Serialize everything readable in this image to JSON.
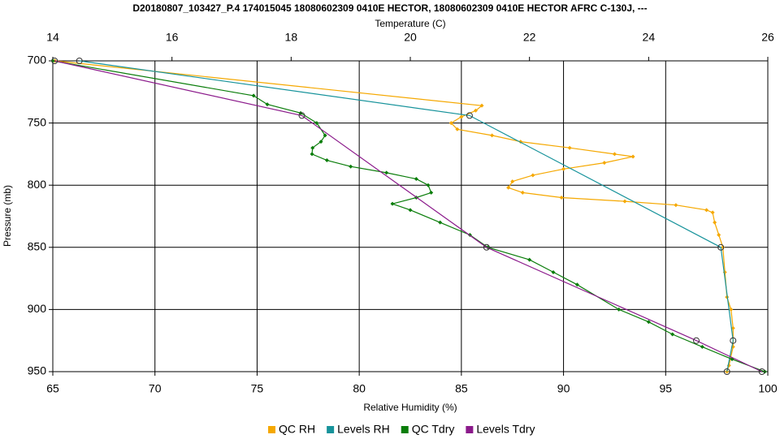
{
  "chart_data": {
    "type": "line",
    "title": "D20180807_103427_P.4 174015045 18080602309 0410E HECTOR, 18080602309 0410E HECTOR AFRC C-130J, ---",
    "x_label": "Relative Humidity (%)",
    "x2_label": "Temperature (C)",
    "y_label": "Pressure (mb)",
    "xlim": [
      65,
      100
    ],
    "xticks": [
      65,
      70,
      75,
      80,
      85,
      90,
      95,
      100
    ],
    "x2lim": [
      14,
      26
    ],
    "x2ticks": [
      14,
      16,
      18,
      20,
      22,
      24,
      26
    ],
    "ylim": [
      950,
      700
    ],
    "yticks": [
      700,
      750,
      800,
      850,
      900,
      950
    ],
    "grid": true,
    "legend": "bottom",
    "series": [
      {
        "name": "QC RH",
        "color": "#f5a800",
        "axis": "x",
        "marker": "diamond",
        "x": [
          65.1,
          86.0,
          85.7,
          85.0,
          84.5,
          84.8,
          86.5,
          87.9,
          90.3,
          92.5,
          93.4,
          92.0,
          90.0,
          88.5,
          87.5,
          87.3,
          88.0,
          89.9,
          93.0,
          95.5,
          97.0,
          97.3,
          97.4,
          97.6,
          97.8,
          97.9,
          98.0,
          98.2,
          98.3,
          98.3,
          98.1,
          98.0
        ],
        "y": [
          700,
          736,
          740,
          745,
          750,
          755,
          760,
          765,
          770,
          775,
          777,
          782,
          787,
          792,
          797,
          802,
          806,
          810,
          813,
          816,
          820,
          822,
          830,
          840,
          850,
          870,
          890,
          900,
          915,
          930,
          945,
          950
        ]
      },
      {
        "name": "Levels RH",
        "color": "#17939b",
        "axis": "x",
        "marker": "circle",
        "x": [
          66.3,
          85.4,
          97.7,
          98.3,
          98.0
        ],
        "y": [
          700,
          744,
          850,
          925,
          950
        ]
      },
      {
        "name": "QC Tdry",
        "color": "#0a7d0a",
        "axis": "x2",
        "marker": "diamond",
        "x": [
          14.0,
          17.37,
          17.6,
          18.16,
          18.43,
          18.57,
          18.5,
          18.36,
          18.35,
          18.6,
          19.0,
          19.6,
          20.1,
          20.3,
          20.35,
          20.1,
          19.7,
          20.0,
          20.5,
          21.0,
          21.3,
          22.0,
          22.4,
          22.8,
          23.5,
          24.0,
          24.4,
          24.9,
          25.4,
          25.95
        ],
        "y": [
          700,
          728,
          735,
          742,
          750,
          760,
          765,
          770,
          775,
          780,
          785,
          790,
          795,
          800,
          806,
          810,
          815,
          820,
          830,
          840,
          850,
          860,
          870,
          880,
          900,
          910,
          920,
          930,
          940,
          950
        ]
      },
      {
        "name": "Levels Tdry",
        "color": "#8b1a8b",
        "axis": "x2",
        "marker": "circle",
        "x": [
          14.03,
          18.18,
          21.28,
          24.8,
          25.9
        ],
        "y": [
          700,
          744,
          850,
          925,
          950
        ]
      }
    ]
  }
}
